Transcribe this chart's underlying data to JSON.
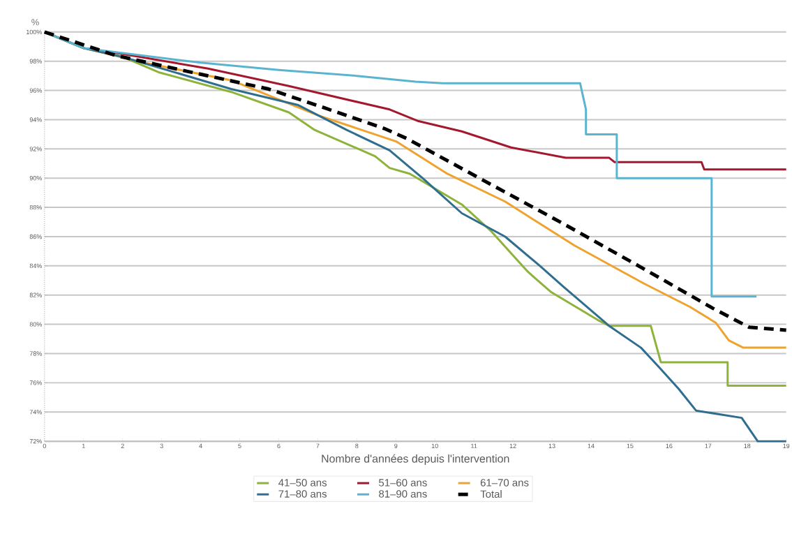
{
  "chart_data": {
    "type": "line",
    "xlabel": "Nombre d'années depuis l'intervention",
    "ylabel": "%",
    "xlim": [
      0,
      19
    ],
    "ylim": [
      72,
      100
    ],
    "xticks": [
      0,
      1,
      2,
      3,
      4,
      5,
      6,
      7,
      8,
      9,
      10,
      11,
      12,
      13,
      14,
      15,
      16,
      17,
      18,
      19
    ],
    "yticks": [
      {
        "value": 72,
        "label": "72%"
      },
      {
        "value": 74,
        "label": "74%"
      },
      {
        "value": 76,
        "label": "76%"
      },
      {
        "value": 78,
        "label": "78%"
      },
      {
        "value": 80,
        "label": "80%"
      },
      {
        "value": 82,
        "label": "82%"
      },
      {
        "value": 84,
        "label": "84%"
      },
      {
        "value": 86,
        "label": "86%"
      },
      {
        "value": 88,
        "label": "88%"
      },
      {
        "value": 90,
        "label": "90%"
      },
      {
        "value": 92,
        "label": "92%"
      },
      {
        "value": 94,
        "label": "94%"
      },
      {
        "value": 96,
        "label": "96%"
      },
      {
        "value": 98,
        "label": "98%"
      },
      {
        "value": 100,
        "label": "100%"
      }
    ],
    "grid": "y",
    "legend": "bottom",
    "marker": "none",
    "series": [
      {
        "name": "41–50 ans",
        "color": "#8db33a",
        "line_style": "solid",
        "x": [
          0,
          1,
          2,
          2.92,
          4.78,
          6.26,
          6.92,
          8.47,
          8.84,
          9.36,
          10.69,
          11.43,
          12.38,
          12.98,
          14.17,
          14.46,
          15.53,
          15.79,
          17.5,
          17.5,
          19
        ],
        "values": [
          100,
          98.9,
          98.3,
          97.25,
          95.9,
          94.5,
          93.3,
          91.5,
          90.7,
          90.3,
          88.2,
          86.4,
          83.6,
          82.2,
          80.3,
          79.9,
          79.9,
          77.4,
          77.4,
          75.8,
          75.8
        ]
      },
      {
        "name": "51–60 ans",
        "color": "#a3182f",
        "line_style": "solid",
        "x": [
          0,
          1,
          2,
          4.19,
          6.26,
          8.84,
          9.58,
          10.69,
          11.95,
          13.35,
          14.46,
          14.6,
          16.83,
          16.9,
          19
        ],
        "values": [
          100,
          98.9,
          98.5,
          97.5,
          96.3,
          94.7,
          93.9,
          93.2,
          92.1,
          91.4,
          91.4,
          91.1,
          91.1,
          90.6,
          90.6
        ]
      },
      {
        "name": "61–70 ans",
        "color": "#f0a22e",
        "line_style": "solid",
        "x": [
          0,
          1,
          2.55,
          4.78,
          7.0,
          9.02,
          10.32,
          11.8,
          13.57,
          15.35,
          16.53,
          17.2,
          17.53,
          17.9,
          19
        ],
        "values": [
          100,
          98.9,
          97.9,
          96.7,
          94.3,
          92.5,
          90.3,
          88.4,
          85.4,
          82.8,
          81.2,
          80.1,
          78.9,
          78.4,
          78.4
        ]
      },
      {
        "name": "71–80 ans",
        "color": "#2f6e8e",
        "line_style": "solid",
        "x": [
          0,
          1,
          2,
          4.78,
          6.5,
          7.74,
          8.84,
          9.73,
          10.69,
          11.8,
          12.69,
          13.28,
          14.46,
          15.28,
          15.73,
          16.24,
          16.69,
          17.86,
          18.27,
          19
        ],
        "values": [
          100,
          98.9,
          98.3,
          96.1,
          95.0,
          93.3,
          91.9,
          89.9,
          87.6,
          86.0,
          84.0,
          82.6,
          79.9,
          78.4,
          77.1,
          75.6,
          74.1,
          73.6,
          72.0,
          72.0
        ]
      },
      {
        "name": "81–90 ans",
        "color": "#5ab4cf",
        "line_style": "solid",
        "x": [
          0,
          1,
          4.0,
          6.0,
          8.0,
          9.5,
          10.2,
          13.72,
          13.87,
          13.87,
          14.66,
          14.66,
          17.09,
          17.09,
          18.24
        ],
        "values": [
          100,
          98.9,
          97.9,
          97.4,
          97.0,
          96.6,
          96.5,
          96.5,
          94.7,
          93.0,
          93.0,
          90.0,
          90.0,
          81.9,
          81.9
        ]
      },
      {
        "name": "Total",
        "color": "#000000",
        "line_style": "dashed",
        "x": [
          0,
          1.82,
          3.67,
          5.74,
          7.18,
          8.7,
          9.29,
          11.21,
          13.28,
          15.35,
          17.12,
          18.05,
          19
        ],
        "values": [
          100,
          98.4,
          97.3,
          96.1,
          94.8,
          93.4,
          92.7,
          89.9,
          86.9,
          83.8,
          81.1,
          79.8,
          79.6
        ]
      }
    ]
  }
}
